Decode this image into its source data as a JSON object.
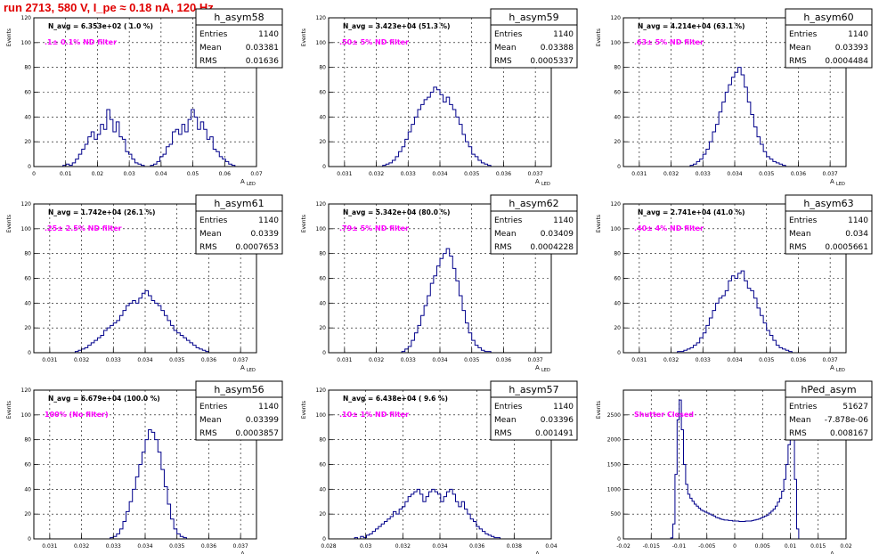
{
  "page": {
    "title": "run 2713,   580 V, I_pe ≈ 0.18 nA, 120 Hz"
  },
  "colors": {
    "histogram": "#00008b",
    "annotation": "#ff00ff",
    "title": "#e00000",
    "frame": "#000000",
    "grid": "#000000"
  },
  "common": {
    "ylabel": "Events",
    "xlabel_main": "A",
    "xlabel_sub": "LED",
    "stats_labels": [
      "Entries",
      "Mean",
      "RMS"
    ]
  },
  "chart_data": [
    {
      "id": "h_asym58",
      "type": "bar",
      "title": "h_asym58",
      "navg": "N_avg = 6.353e+02 ( 1.0 %)",
      "note": ".1± 0.1% ND filter",
      "stats": {
        "entries": "1140",
        "mean": "0.03381",
        "rms": "0.01636"
      },
      "xlim": [
        0,
        0.07
      ],
      "ylim": [
        0,
        120
      ],
      "xticks": [
        "0",
        "0.01",
        "0.02",
        "0.03",
        "0.04",
        "0.05",
        "0.06",
        "0.07"
      ],
      "yticks": [
        "0",
        "20",
        "40",
        "60",
        "80",
        "100",
        "120"
      ],
      "xtickvals": [
        0,
        0.01,
        0.02,
        0.03,
        0.04,
        0.05,
        0.06,
        0.07
      ],
      "ytickvals": [
        0,
        20,
        40,
        60,
        80,
        100,
        120
      ],
      "bins": {
        "x0": 0.0062,
        "x1": 0.0652,
        "counts": [
          0,
          0,
          0,
          1,
          2,
          1,
          3,
          6,
          10,
          14,
          18,
          24,
          28,
          22,
          26,
          34,
          30,
          46,
          38,
          28,
          36,
          24,
          22,
          12,
          10,
          6,
          3,
          2,
          1,
          0,
          0,
          1,
          2,
          4,
          8,
          10,
          16,
          18,
          28,
          30,
          26,
          34,
          28,
          38,
          46,
          40,
          30,
          36,
          30,
          22,
          24,
          14,
          12,
          8,
          6,
          4,
          2,
          1,
          0,
          0
        ]
      }
    },
    {
      "id": "h_asym59",
      "type": "bar",
      "title": "h_asym59",
      "navg": "N_avg = 3.423e+04 (51.3 %)",
      "note": ".50± 5% ND filter",
      "stats": {
        "entries": "1140",
        "mean": "0.03388",
        "rms": "0.0005337"
      },
      "xlim": [
        0.0305,
        0.0375
      ],
      "ylim": [
        0,
        120
      ],
      "xticks": [
        "0.031",
        "0.032",
        "0.033",
        "0.034",
        "0.035",
        "0.036",
        "0.037"
      ],
      "yticks": [
        "0",
        "20",
        "40",
        "60",
        "80",
        "100",
        "120"
      ],
      "xtickvals": [
        0.031,
        0.032,
        0.033,
        0.034,
        0.035,
        0.036,
        0.037
      ],
      "ytickvals": [
        0,
        20,
        40,
        60,
        80,
        100,
        120
      ],
      "bins": {
        "x0": 0.0322,
        "x1": 0.0356,
        "counts": [
          1,
          2,
          3,
          5,
          8,
          12,
          16,
          22,
          28,
          34,
          40,
          46,
          50,
          54,
          56,
          60,
          64,
          62,
          58,
          52,
          56,
          50,
          46,
          40,
          34,
          26,
          20,
          16,
          10,
          8,
          5,
          3,
          2,
          1
        ]
      }
    },
    {
      "id": "h_asym60",
      "type": "bar",
      "title": "h_asym60",
      "navg": "N_avg = 4.214e+04 (63.1 %)",
      "note": ".63± 5% ND filter",
      "stats": {
        "entries": "1140",
        "mean": "0.03393",
        "rms": "0.0004484"
      },
      "xlim": [
        0.0305,
        0.0375
      ],
      "ylim": [
        0,
        120
      ],
      "xticks": [
        "0.031",
        "0.032",
        "0.033",
        "0.034",
        "0.035",
        "0.036",
        "0.037"
      ],
      "yticks": [
        "0",
        "20",
        "40",
        "60",
        "80",
        "100",
        "120"
      ],
      "xtickvals": [
        0.031,
        0.032,
        0.033,
        0.034,
        0.035,
        0.036,
        0.037
      ],
      "ytickvals": [
        0,
        20,
        40,
        60,
        80,
        100,
        120
      ],
      "bins": {
        "x0": 0.0326,
        "x1": 0.0356,
        "counts": [
          1,
          2,
          4,
          6,
          10,
          14,
          20,
          28,
          34,
          44,
          52,
          60,
          66,
          72,
          76,
          80,
          74,
          64,
          52,
          42,
          32,
          24,
          18,
          12,
          8,
          6,
          4,
          3,
          2,
          1
        ]
      }
    },
    {
      "id": "h_asym61",
      "type": "bar",
      "title": "h_asym61",
      "navg": "N_avg = 1.742e+04 (26.1 %)",
      "note": ".25± 2.5% ND filter",
      "stats": {
        "entries": "1140",
        "mean": "0.0339",
        "rms": "0.0007653"
      },
      "xlim": [
        0.0305,
        0.0375
      ],
      "ylim": [
        0,
        120
      ],
      "xticks": [
        "0.031",
        "0.032",
        "0.033",
        "0.034",
        "0.035",
        "0.036",
        "0.037"
      ],
      "yticks": [
        "0",
        "20",
        "40",
        "60",
        "80",
        "100",
        "120"
      ],
      "xtickvals": [
        0.031,
        0.032,
        0.033,
        0.034,
        0.035,
        0.036,
        0.037
      ],
      "ytickvals": [
        0,
        20,
        40,
        60,
        80,
        100,
        120
      ],
      "bins": {
        "x0": 0.0318,
        "x1": 0.036,
        "counts": [
          1,
          2,
          3,
          4,
          6,
          8,
          10,
          12,
          14,
          18,
          20,
          22,
          24,
          26,
          30,
          34,
          38,
          40,
          42,
          40,
          44,
          48,
          50,
          46,
          42,
          40,
          38,
          34,
          30,
          26,
          22,
          18,
          16,
          14,
          12,
          10,
          8,
          6,
          4,
          3,
          2,
          1
        ]
      }
    },
    {
      "id": "h_asym62",
      "type": "bar",
      "title": "h_asym62",
      "navg": "N_avg = 5.342e+04 (80.0 %)",
      "note": ".79± 5% ND filter",
      "stats": {
        "entries": "1140",
        "mean": "0.03409",
        "rms": "0.0004228"
      },
      "xlim": [
        0.0305,
        0.0375
      ],
      "ylim": [
        0,
        120
      ],
      "xticks": [
        "0.031",
        "0.032",
        "0.033",
        "0.034",
        "0.035",
        "0.036",
        "0.037"
      ],
      "yticks": [
        "0",
        "20",
        "40",
        "60",
        "80",
        "100",
        "120"
      ],
      "xtickvals": [
        0.031,
        0.032,
        0.033,
        0.034,
        0.035,
        0.036,
        0.037
      ],
      "ytickvals": [
        0,
        20,
        40,
        60,
        80,
        100,
        120
      ],
      "bins": {
        "x0": 0.0328,
        "x1": 0.0356,
        "counts": [
          1,
          3,
          5,
          10,
          16,
          22,
          30,
          38,
          46,
          56,
          62,
          70,
          76,
          80,
          84,
          78,
          68,
          58,
          46,
          34,
          24,
          16,
          10,
          6,
          4,
          2,
          1,
          1
        ]
      }
    },
    {
      "id": "h_asym63",
      "type": "bar",
      "title": "h_asym63",
      "navg": "N_avg = 2.741e+04 (41.0 %)",
      "note": ".40± 4% ND filter",
      "stats": {
        "entries": "1140",
        "mean": "0.034",
        "rms": "0.0005661"
      },
      "xlim": [
        0.0305,
        0.0375
      ],
      "ylim": [
        0,
        120
      ],
      "xticks": [
        "0.031",
        "0.032",
        "0.033",
        "0.034",
        "0.035",
        "0.036",
        "0.037"
      ],
      "yticks": [
        "0",
        "20",
        "40",
        "60",
        "80",
        "100",
        "120"
      ],
      "xtickvals": [
        0.031,
        0.032,
        0.033,
        0.034,
        0.035,
        0.036,
        0.037
      ],
      "ytickvals": [
        0,
        20,
        40,
        60,
        80,
        100,
        120
      ],
      "bins": {
        "x0": 0.0322,
        "x1": 0.0358,
        "counts": [
          1,
          1,
          2,
          3,
          4,
          6,
          8,
          12,
          16,
          22,
          28,
          34,
          40,
          44,
          46,
          50,
          58,
          62,
          60,
          64,
          66,
          58,
          52,
          50,
          44,
          36,
          30,
          24,
          18,
          14,
          10,
          6,
          4,
          3,
          2,
          1
        ]
      }
    },
    {
      "id": "h_asym56",
      "type": "bar",
      "title": "h_asym56",
      "navg": "N_avg = 6.679e+04 (100.0 %)",
      "note": "100% (No filter)",
      "stats": {
        "entries": "1140",
        "mean": "0.03399",
        "rms": "0.0003857"
      },
      "xlim": [
        0.0305,
        0.0375
      ],
      "ylim": [
        0,
        120
      ],
      "xticks": [
        "0.031",
        "0.032",
        "0.033",
        "0.034",
        "0.035",
        "0.036",
        "0.037"
      ],
      "yticks": [
        "0",
        "20",
        "40",
        "60",
        "80",
        "100",
        "120"
      ],
      "xtickvals": [
        0.031,
        0.032,
        0.033,
        0.034,
        0.035,
        0.036,
        0.037
      ],
      "ytickvals": [
        0,
        20,
        40,
        60,
        80,
        100,
        120
      ],
      "bins": {
        "x0": 0.0329,
        "x1": 0.0353,
        "counts": [
          1,
          2,
          4,
          8,
          14,
          22,
          30,
          40,
          50,
          60,
          70,
          80,
          88,
          86,
          80,
          70,
          56,
          42,
          28,
          16,
          8,
          4,
          2,
          1
        ]
      }
    },
    {
      "id": "h_asym57",
      "type": "bar",
      "title": "h_asym57",
      "navg": "N_avg = 6.438e+04 ( 9.6 %)",
      "note": ".10± 1% ND filter",
      "stats": {
        "entries": "1140",
        "mean": "0.03396",
        "rms": "0.001491"
      },
      "xlim": [
        0.028,
        0.04
      ],
      "ylim": [
        0,
        120
      ],
      "xticks": [
        "0.028",
        "0.03",
        "0.032",
        "0.034",
        "0.036",
        "0.038",
        "0.04"
      ],
      "yticks": [
        "0",
        "20",
        "40",
        "60",
        "80",
        "100",
        "120"
      ],
      "xtickvals": [
        0.028,
        0.03,
        0.032,
        0.034,
        0.036,
        0.038,
        0.04
      ],
      "ytickvals": [
        0,
        20,
        40,
        60,
        80,
        100,
        120
      ],
      "bins": {
        "x0": 0.0294,
        "x1": 0.0374,
        "counts": [
          1,
          0,
          2,
          1,
          3,
          4,
          6,
          8,
          10,
          12,
          14,
          16,
          18,
          22,
          20,
          24,
          26,
          30,
          34,
          36,
          38,
          40,
          36,
          30,
          34,
          38,
          40,
          38,
          36,
          30,
          34,
          38,
          40,
          36,
          30,
          26,
          30,
          24,
          20,
          16,
          14,
          10,
          8,
          6,
          4,
          3,
          2,
          1,
          1,
          0
        ]
      }
    },
    {
      "id": "hPed_asym",
      "type": "bar",
      "title": "hPed_asym",
      "navg": "",
      "note": "Shutter Closed",
      "stats": {
        "entries": "51627",
        "mean": "-7.878e-06",
        "rms": "0.008167"
      },
      "xlim": [
        -0.02,
        0.02
      ],
      "ylim": [
        0,
        3000
      ],
      "xticks": [
        "-0.02",
        "-0.015",
        "-0.01",
        "-0.005",
        "0",
        "0.005",
        "0.01",
        "0.015",
        "0.02"
      ],
      "yticks": [
        "0",
        "500",
        "1000",
        "1500",
        "2000",
        "2500"
      ],
      "xtickvals": [
        -0.02,
        -0.015,
        -0.01,
        -0.005,
        0,
        0.005,
        0.01,
        0.015,
        0.02
      ],
      "ytickvals": [
        0,
        500,
        1000,
        1500,
        2000,
        2500
      ],
      "bins": {
        "x0": -0.0115,
        "x1": 0.0115,
        "counts": [
          20,
          300,
          1300,
          2400,
          2800,
          2200,
          1500,
          1100,
          900,
          820,
          760,
          700,
          660,
          620,
          580,
          560,
          540,
          520,
          500,
          480,
          460,
          430,
          420,
          400,
          390,
          380,
          380,
          370,
          370,
          360,
          360,
          360,
          350,
          350,
          350,
          360,
          360,
          360,
          370,
          380,
          390,
          400,
          420,
          440,
          460,
          480,
          520,
          560,
          600,
          660,
          740,
          820,
          960,
          1200,
          1500,
          1900,
          2500,
          2600,
          1200,
          200
        ]
      }
    }
  ]
}
